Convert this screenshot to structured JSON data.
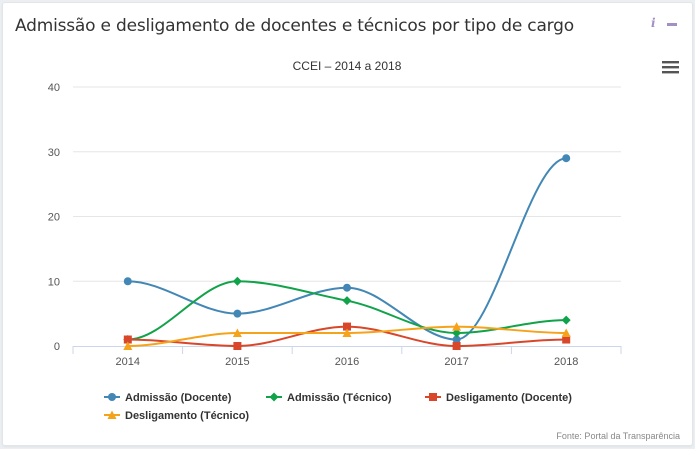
{
  "card": {
    "title": "Admissão e desligamento de docentes e técnicos por tipo de cargo",
    "info_icon_glyph": "i",
    "info_icon": "info-icon",
    "minimize_icon": "minimize-icon",
    "menu_icon": "hamburger-menu-icon"
  },
  "chart_data": {
    "type": "line",
    "title": "CCEI – 2014 a 2018",
    "xlabel": "",
    "ylabel": "",
    "categories": [
      "2014",
      "2015",
      "2016",
      "2017",
      "2018"
    ],
    "ylim": [
      0,
      40
    ],
    "yticks": [
      0,
      10,
      20,
      30,
      40
    ],
    "grid": true,
    "smooth": true,
    "legend_position": "bottom",
    "credits": "Fonte: Portal da Transparência",
    "series": [
      {
        "name": "Admissão (Docente)",
        "color": "#4287b5",
        "marker": "circle",
        "values": [
          10,
          5,
          9,
          1,
          29
        ]
      },
      {
        "name": "Admissão (Técnico)",
        "color": "#10a34a",
        "marker": "diamond",
        "values": [
          1,
          10,
          7,
          2,
          4
        ]
      },
      {
        "name": "Desligamento (Docente)",
        "color": "#d9472b",
        "marker": "square",
        "values": [
          1,
          0,
          3,
          0,
          1
        ]
      },
      {
        "name": "Desligamento (Técnico)",
        "color": "#f5a31a",
        "marker": "triangle",
        "values": [
          0,
          2,
          2,
          3,
          2
        ]
      }
    ]
  }
}
